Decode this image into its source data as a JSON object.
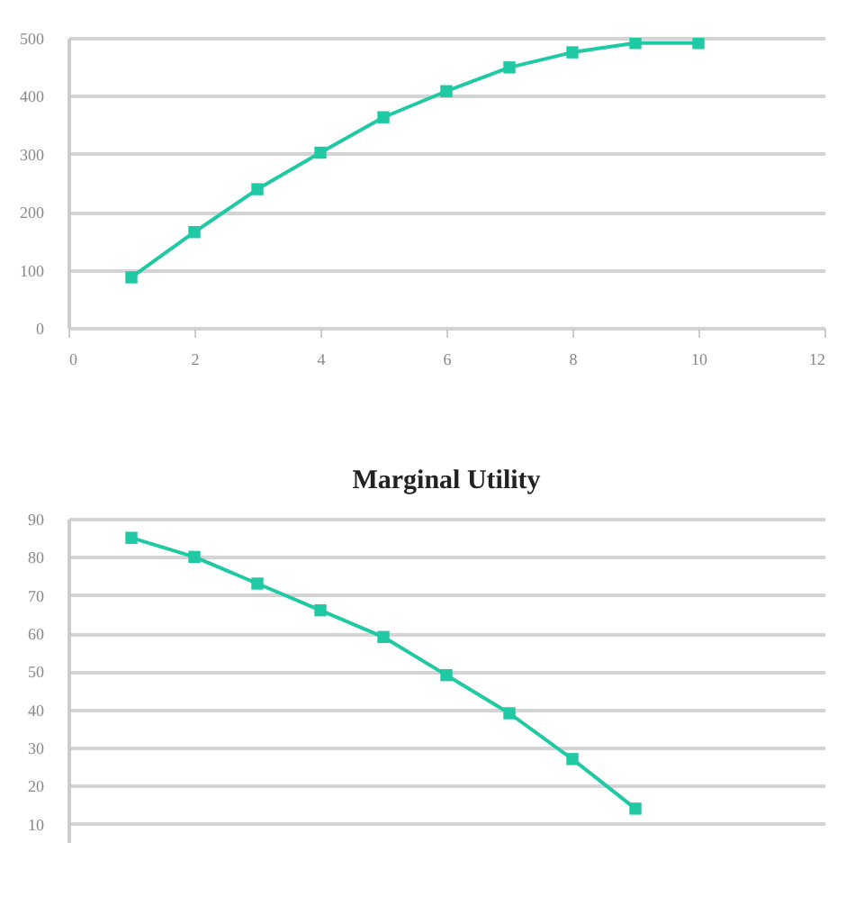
{
  "chart_data": [
    {
      "type": "line",
      "x": [
        1,
        2,
        3,
        4,
        5,
        6,
        7,
        8,
        9,
        10
      ],
      "series": [
        {
          "color": "#1fc9a4",
          "values": [
            87,
            165,
            239,
            302,
            363,
            408,
            449,
            475,
            491,
            491
          ]
        }
      ],
      "xlim": [
        0,
        12
      ],
      "xticks": [
        0,
        2,
        4,
        6,
        8,
        10,
        12
      ],
      "ylim": [
        0,
        500
      ],
      "yticks": [
        0,
        100,
        200,
        300,
        400,
        500
      ],
      "grid": "y",
      "marker": "square",
      "line_style": "solid"
    },
    {
      "type": "line",
      "title": "Marginal Utility",
      "x": [
        1,
        2,
        3,
        4,
        5,
        6,
        7,
        8,
        9
      ],
      "series": [
        {
          "color": "#1fc9a4",
          "values": [
            85,
            80,
            73,
            66,
            59,
            49,
            39,
            27,
            14
          ]
        }
      ],
      "xlim": [
        0,
        12
      ],
      "ylim": [
        5,
        90
      ],
      "yticks": [
        10,
        20,
        30,
        40,
        50,
        60,
        70,
        80,
        90
      ],
      "grid": "y",
      "marker": "square",
      "line_style": "solid",
      "tick_labels": "y"
    }
  ]
}
